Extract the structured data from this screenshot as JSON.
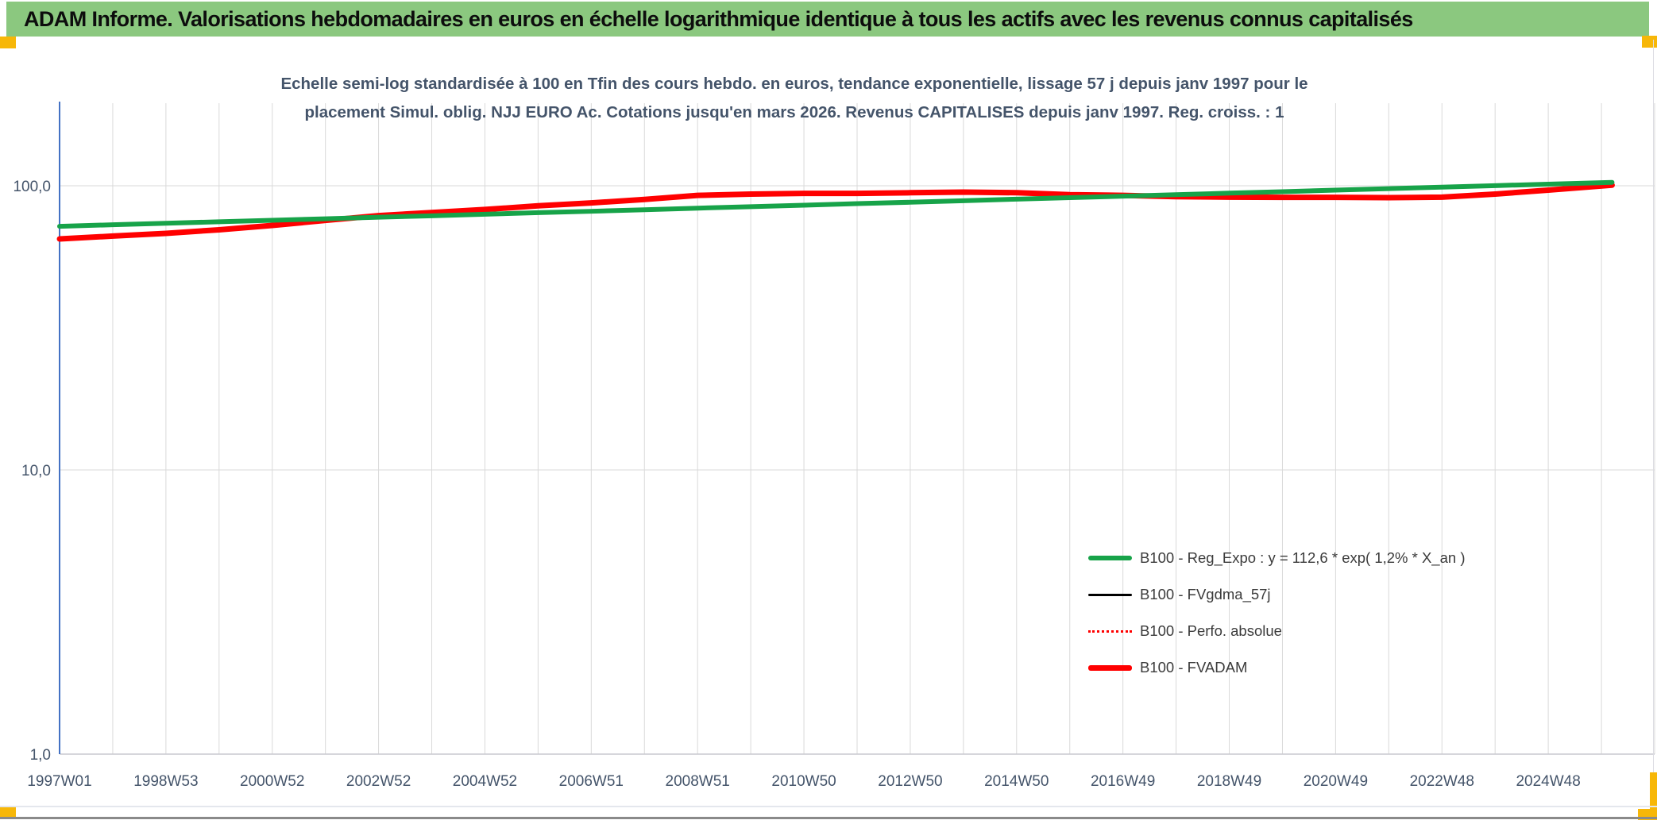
{
  "window": {
    "title": "ADAM Informe. Valorisations hebdomadaires en euros en échelle logarithmique identique à tous les actifs avec les revenus connus capitalisés",
    "title_bg": "#8BC87F",
    "corner_marker_color": "#F7B708"
  },
  "chart_data": {
    "type": "line",
    "title_lines": [
      "Echelle semi-log standardisée à 100 en Tfin des cours hebdo. en euros, tendance exponentielle, lissage 57 j depuis janv 1997 pour le",
      "placement Simul. oblig. NJJ EURO Ac. Cotations jusqu'en mars 2026. Revenus CAPITALISES depuis janv 1997. Reg. croiss. : 1"
    ],
    "y_axis": {
      "scale": "log",
      "ticks": [
        "100,0",
        "10,0",
        "1,0"
      ],
      "tick_values": [
        100,
        10,
        1
      ],
      "range": [
        1,
        195
      ],
      "axis_line_color": "#4472C4"
    },
    "x_axis": {
      "tick_labels": [
        "1997W01",
        "1998W53",
        "2000W52",
        "2002W52",
        "2004W52",
        "2006W51",
        "2008W51",
        "2010W50",
        "2012W50",
        "2014W50",
        "2016W49",
        "2018W49",
        "2020W49",
        "2022W48",
        "2024W48"
      ],
      "tick_years": [
        1997,
        1999,
        2001,
        2003,
        2005,
        2007,
        2009,
        2011,
        2013,
        2015,
        2017,
        2019,
        2021,
        2023,
        2025
      ],
      "grid_year_range": [
        1997,
        2027
      ],
      "gridline_every_years": 1
    },
    "grid_color": "#D9D9D9",
    "legend_position": "right-center",
    "x_years": [
      1997,
      1998,
      1999,
      2000,
      2001,
      2002,
      2003,
      2004,
      2005,
      2006,
      2007,
      2008,
      2009,
      2010,
      2011,
      2012,
      2013,
      2014,
      2015,
      2016,
      2017,
      2018,
      2019,
      2020,
      2021,
      2022,
      2023,
      2024,
      2025,
      2026.2
    ],
    "series": [
      {
        "id": "reg-expo",
        "name": "B100 - Reg_Expo : y = 112,6 * exp( 1,2% *  X_an )",
        "color": "#17A349",
        "style": "solid",
        "width": 6,
        "values": [
          72.0,
          72.9,
          73.8,
          74.7,
          75.6,
          76.5,
          77.5,
          78.4,
          79.4,
          80.4,
          81.3,
          82.3,
          83.4,
          84.4,
          85.4,
          86.5,
          87.5,
          88.6,
          89.7,
          90.8,
          91.9,
          93.0,
          94.2,
          95.3,
          96.5,
          97.7,
          98.9,
          100.1,
          101.3,
          102.8
        ]
      },
      {
        "id": "fvgdma-57j",
        "name": "B100 - FVgdma_57j",
        "color": "#000000",
        "style": "solid",
        "width": 3,
        "values": [
          65.0,
          66.5,
          68.0,
          70.0,
          72.5,
          75.5,
          78.5,
          80.5,
          82.5,
          85.0,
          87.0,
          89.5,
          92.5,
          93.5,
          94.0,
          94.0,
          94.5,
          95.0,
          94.5,
          93.0,
          92.5,
          91.5,
          91.2,
          91.0,
          91.0,
          90.8,
          91.2,
          93.5,
          96.5,
          100.5
        ]
      },
      {
        "id": "perfo-absolue",
        "name": "B100 - Perfo. absolue",
        "color": "#FF0000",
        "style": "dotted",
        "width": 2,
        "values": [
          65.0,
          66.5,
          68.0,
          70.0,
          72.5,
          75.5,
          78.5,
          80.5,
          82.5,
          85.0,
          87.0,
          89.5,
          92.5,
          93.5,
          94.0,
          94.0,
          94.5,
          95.0,
          94.5,
          93.0,
          92.5,
          91.5,
          91.2,
          91.0,
          91.0,
          90.8,
          91.2,
          93.5,
          96.5,
          100.5
        ]
      },
      {
        "id": "fvadam",
        "name": "B100 - FVADAM",
        "color": "#FF0000",
        "style": "solid",
        "width": 7,
        "values": [
          65.0,
          66.5,
          68.0,
          70.0,
          72.5,
          75.5,
          78.5,
          80.5,
          82.5,
          85.0,
          87.0,
          89.5,
          92.5,
          93.5,
          94.0,
          94.0,
          94.5,
          95.0,
          94.5,
          93.0,
          92.5,
          91.5,
          91.2,
          91.0,
          91.0,
          90.8,
          91.2,
          93.5,
          96.5,
          100.5
        ]
      }
    ]
  }
}
